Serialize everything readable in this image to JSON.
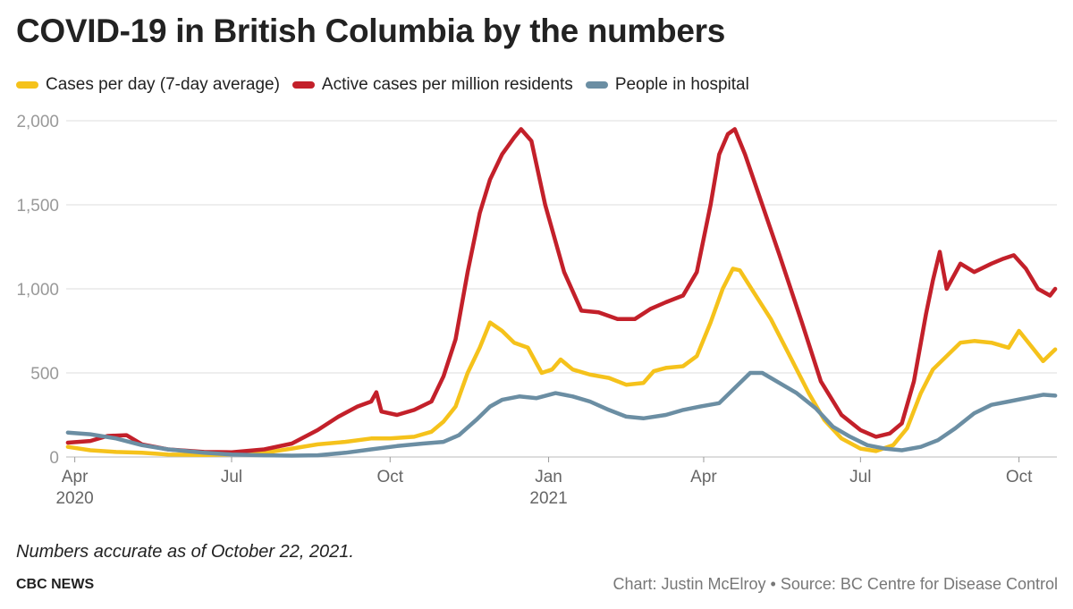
{
  "title": "COVID-19 in British Columbia by the numbers",
  "note": "Numbers accurate as of October 22, 2021.",
  "brand": "CBC NEWS",
  "credit": "Chart: Justin McElroy • Source: BC Centre for Disease Control",
  "colors": {
    "cases": "#f5c21b",
    "active": "#c3202a",
    "hospital": "#6b8ea3",
    "grid": "#dddddd",
    "axis_text": "#999999"
  },
  "chart_data": {
    "type": "line",
    "x_type": "date",
    "xlim": [
      "2020-03-27",
      "2021-10-23"
    ],
    "ylim": [
      0,
      2000
    ],
    "yticks": [
      0,
      500,
      1000,
      1500,
      2000
    ],
    "ytick_labels": [
      "0",
      "500",
      "1,000",
      "1,500",
      "2,000"
    ],
    "xticks": [
      {
        "date": "2020-04-01",
        "label": "Apr",
        "sublabel": "2020"
      },
      {
        "date": "2020-07-01",
        "label": "Jul",
        "sublabel": ""
      },
      {
        "date": "2020-10-01",
        "label": "Oct",
        "sublabel": ""
      },
      {
        "date": "2021-01-01",
        "label": "Jan",
        "sublabel": "2021"
      },
      {
        "date": "2021-04-01",
        "label": "Apr",
        "sublabel": ""
      },
      {
        "date": "2021-07-01",
        "label": "Jul",
        "sublabel": ""
      },
      {
        "date": "2021-10-01",
        "label": "Oct",
        "sublabel": ""
      }
    ],
    "grid": true,
    "legend_position": "top-left",
    "series": [
      {
        "name": "Cases per day (7-day average)",
        "color_key": "cases",
        "points": [
          [
            "2020-03-28",
            60
          ],
          [
            "2020-04-10",
            40
          ],
          [
            "2020-04-25",
            30
          ],
          [
            "2020-05-10",
            25
          ],
          [
            "2020-05-25",
            15
          ],
          [
            "2020-06-15",
            12
          ],
          [
            "2020-07-01",
            15
          ],
          [
            "2020-07-20",
            25
          ],
          [
            "2020-08-05",
            50
          ],
          [
            "2020-08-20",
            75
          ],
          [
            "2020-09-05",
            90
          ],
          [
            "2020-09-20",
            110
          ],
          [
            "2020-10-01",
            110
          ],
          [
            "2020-10-15",
            120
          ],
          [
            "2020-10-25",
            150
          ],
          [
            "2020-11-01",
            210
          ],
          [
            "2020-11-08",
            300
          ],
          [
            "2020-11-15",
            500
          ],
          [
            "2020-11-22",
            650
          ],
          [
            "2020-11-28",
            800
          ],
          [
            "2020-12-05",
            750
          ],
          [
            "2020-12-12",
            680
          ],
          [
            "2020-12-20",
            650
          ],
          [
            "2020-12-28",
            500
          ],
          [
            "2021-01-03",
            520
          ],
          [
            "2021-01-08",
            580
          ],
          [
            "2021-01-15",
            520
          ],
          [
            "2021-01-25",
            490
          ],
          [
            "2021-02-05",
            470
          ],
          [
            "2021-02-15",
            430
          ],
          [
            "2021-02-25",
            440
          ],
          [
            "2021-03-03",
            510
          ],
          [
            "2021-03-10",
            530
          ],
          [
            "2021-03-20",
            540
          ],
          [
            "2021-03-28",
            600
          ],
          [
            "2021-04-05",
            800
          ],
          [
            "2021-04-12",
            1000
          ],
          [
            "2021-04-18",
            1120
          ],
          [
            "2021-04-22",
            1110
          ],
          [
            "2021-04-30",
            980
          ],
          [
            "2021-05-10",
            820
          ],
          [
            "2021-05-20",
            620
          ],
          [
            "2021-06-01",
            380
          ],
          [
            "2021-06-10",
            220
          ],
          [
            "2021-06-20",
            110
          ],
          [
            "2021-07-01",
            50
          ],
          [
            "2021-07-10",
            35
          ],
          [
            "2021-07-20",
            70
          ],
          [
            "2021-07-28",
            170
          ],
          [
            "2021-08-05",
            380
          ],
          [
            "2021-08-12",
            520
          ],
          [
            "2021-08-20",
            600
          ],
          [
            "2021-08-28",
            680
          ],
          [
            "2021-09-05",
            690
          ],
          [
            "2021-09-15",
            680
          ],
          [
            "2021-09-25",
            650
          ],
          [
            "2021-10-01",
            750
          ],
          [
            "2021-10-08",
            660
          ],
          [
            "2021-10-15",
            570
          ],
          [
            "2021-10-22",
            640
          ]
        ]
      },
      {
        "name": "Active cases per million residents",
        "color_key": "active",
        "points": [
          [
            "2020-03-28",
            85
          ],
          [
            "2020-04-10",
            95
          ],
          [
            "2020-04-20",
            125
          ],
          [
            "2020-05-01",
            130
          ],
          [
            "2020-05-10",
            75
          ],
          [
            "2020-05-25",
            45
          ],
          [
            "2020-06-15",
            30
          ],
          [
            "2020-07-01",
            28
          ],
          [
            "2020-07-20",
            45
          ],
          [
            "2020-08-05",
            80
          ],
          [
            "2020-08-20",
            160
          ],
          [
            "2020-09-01",
            240
          ],
          [
            "2020-09-12",
            300
          ],
          [
            "2020-09-20",
            330
          ],
          [
            "2020-09-23",
            385
          ],
          [
            "2020-09-26",
            270
          ],
          [
            "2020-10-05",
            250
          ],
          [
            "2020-10-15",
            280
          ],
          [
            "2020-10-25",
            330
          ],
          [
            "2020-11-01",
            480
          ],
          [
            "2020-11-08",
            700
          ],
          [
            "2020-11-15",
            1100
          ],
          [
            "2020-11-22",
            1450
          ],
          [
            "2020-11-28",
            1650
          ],
          [
            "2020-12-05",
            1800
          ],
          [
            "2020-12-12",
            1900
          ],
          [
            "2020-12-16",
            1950
          ],
          [
            "2020-12-22",
            1880
          ],
          [
            "2020-12-30",
            1500
          ],
          [
            "2021-01-10",
            1100
          ],
          [
            "2021-01-20",
            870
          ],
          [
            "2021-01-30",
            860
          ],
          [
            "2021-02-10",
            820
          ],
          [
            "2021-02-20",
            820
          ],
          [
            "2021-03-01",
            880
          ],
          [
            "2021-03-10",
            920
          ],
          [
            "2021-03-20",
            960
          ],
          [
            "2021-03-28",
            1100
          ],
          [
            "2021-04-05",
            1500
          ],
          [
            "2021-04-10",
            1800
          ],
          [
            "2021-04-15",
            1920
          ],
          [
            "2021-04-19",
            1950
          ],
          [
            "2021-04-25",
            1800
          ],
          [
            "2021-05-05",
            1500
          ],
          [
            "2021-05-15",
            1200
          ],
          [
            "2021-05-28",
            800
          ],
          [
            "2021-06-08",
            450
          ],
          [
            "2021-06-20",
            250
          ],
          [
            "2021-07-01",
            160
          ],
          [
            "2021-07-10",
            120
          ],
          [
            "2021-07-18",
            140
          ],
          [
            "2021-07-25",
            200
          ],
          [
            "2021-08-01",
            450
          ],
          [
            "2021-08-08",
            850
          ],
          [
            "2021-08-12",
            1050
          ],
          [
            "2021-08-16",
            1220
          ],
          [
            "2021-08-20",
            1000
          ],
          [
            "2021-08-28",
            1150
          ],
          [
            "2021-09-05",
            1100
          ],
          [
            "2021-09-15",
            1150
          ],
          [
            "2021-09-22",
            1180
          ],
          [
            "2021-09-28",
            1200
          ],
          [
            "2021-10-05",
            1120
          ],
          [
            "2021-10-12",
            1000
          ],
          [
            "2021-10-19",
            960
          ],
          [
            "2021-10-22",
            1000
          ]
        ]
      },
      {
        "name": "People in hospital",
        "color_key": "hospital",
        "points": [
          [
            "2020-03-28",
            145
          ],
          [
            "2020-04-10",
            135
          ],
          [
            "2020-04-25",
            110
          ],
          [
            "2020-05-10",
            70
          ],
          [
            "2020-05-25",
            45
          ],
          [
            "2020-06-15",
            25
          ],
          [
            "2020-07-01",
            15
          ],
          [
            "2020-07-20",
            10
          ],
          [
            "2020-08-05",
            8
          ],
          [
            "2020-08-20",
            10
          ],
          [
            "2020-09-05",
            25
          ],
          [
            "2020-09-20",
            45
          ],
          [
            "2020-10-05",
            65
          ],
          [
            "2020-10-20",
            80
          ],
          [
            "2020-11-01",
            90
          ],
          [
            "2020-11-10",
            130
          ],
          [
            "2020-11-20",
            220
          ],
          [
            "2020-11-28",
            300
          ],
          [
            "2020-12-05",
            340
          ],
          [
            "2020-12-15",
            360
          ],
          [
            "2020-12-25",
            350
          ],
          [
            "2021-01-05",
            380
          ],
          [
            "2021-01-15",
            360
          ],
          [
            "2021-01-25",
            330
          ],
          [
            "2021-02-05",
            280
          ],
          [
            "2021-02-15",
            240
          ],
          [
            "2021-02-25",
            230
          ],
          [
            "2021-03-10",
            250
          ],
          [
            "2021-03-20",
            280
          ],
          [
            "2021-03-30",
            300
          ],
          [
            "2021-04-10",
            320
          ],
          [
            "2021-04-20",
            420
          ],
          [
            "2021-04-28",
            500
          ],
          [
            "2021-05-05",
            500
          ],
          [
            "2021-05-15",
            440
          ],
          [
            "2021-05-25",
            380
          ],
          [
            "2021-06-05",
            290
          ],
          [
            "2021-06-15",
            180
          ],
          [
            "2021-06-25",
            120
          ],
          [
            "2021-07-05",
            70
          ],
          [
            "2021-07-15",
            50
          ],
          [
            "2021-07-25",
            40
          ],
          [
            "2021-08-05",
            60
          ],
          [
            "2021-08-15",
            100
          ],
          [
            "2021-08-25",
            170
          ],
          [
            "2021-09-05",
            260
          ],
          [
            "2021-09-15",
            310
          ],
          [
            "2021-09-25",
            330
          ],
          [
            "2021-10-05",
            350
          ],
          [
            "2021-10-15",
            370
          ],
          [
            "2021-10-22",
            365
          ]
        ]
      }
    ]
  }
}
